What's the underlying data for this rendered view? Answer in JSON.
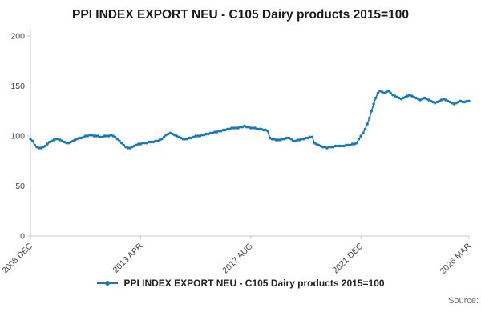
{
  "page": {
    "title": "PPI INDEX EXPORT NEU - C105 Dairy products 2015=100",
    "source_label": "Source:"
  },
  "legend": {
    "label": "PPI INDEX EXPORT NEU - C105 Dairy products 2015=100"
  },
  "chart_data": {
    "type": "line",
    "title": "PPI INDEX EXPORT NEU - C105 Dairy products 2015=100",
    "series_name": "PPI INDEX EXPORT NEU - C105 Dairy products 2015=100",
    "frequency": "monthly",
    "x_start": "2008 DEC",
    "x_end": "2026 MAR",
    "x_tick_labels": [
      "2008 DEC",
      "2013 APR",
      "2017 AUG",
      "2021 DEC",
      "2026 MAR"
    ],
    "x_tick_indices": [
      0,
      52,
      104,
      156,
      207
    ],
    "y_ticks": [
      0,
      50,
      100,
      150,
      200
    ],
    "ylim": [
      0,
      200
    ],
    "grid": false,
    "legend_position": "bottom",
    "line_color": "#1878b8",
    "axis_color": "#c8c8c8",
    "tick_label_color": "#444444",
    "values": [
      97,
      95,
      91,
      89,
      88,
      88,
      89,
      90,
      92,
      94,
      95,
      96,
      97,
      97,
      96,
      95,
      94,
      93,
      93,
      94,
      95,
      96,
      97,
      98,
      98,
      99,
      100,
      100,
      101,
      101,
      100,
      100,
      100,
      99,
      99,
      100,
      100,
      100,
      101,
      100,
      99,
      97,
      95,
      93,
      91,
      89,
      88,
      88,
      89,
      90,
      91,
      92,
      92,
      93,
      93,
      93,
      94,
      94,
      94,
      95,
      95,
      96,
      97,
      99,
      101,
      102,
      103,
      102,
      101,
      100,
      99,
      98,
      97,
      97,
      97,
      98,
      98,
      99,
      100,
      100,
      100,
      101,
      101,
      102,
      102,
      103,
      103,
      104,
      104,
      105,
      105,
      106,
      106,
      107,
      107,
      108,
      108,
      108,
      108,
      109,
      109,
      110,
      109,
      109,
      108,
      108,
      108,
      107,
      107,
      107,
      106,
      106,
      105,
      98,
      97,
      97,
      96,
      96,
      96,
      97,
      97,
      98,
      98,
      97,
      95,
      95,
      96,
      96,
      97,
      97,
      98,
      98,
      99,
      99,
      93,
      92,
      91,
      90,
      89,
      89,
      88,
      89,
      89,
      89,
      90,
      90,
      90,
      90,
      90,
      91,
      91,
      91,
      92,
      92,
      93,
      97,
      100,
      103,
      107,
      112,
      118,
      125,
      132,
      138,
      143,
      145,
      144,
      143,
      144,
      145,
      143,
      141,
      140,
      139,
      138,
      137,
      138,
      139,
      140,
      141,
      140,
      139,
      138,
      137,
      136,
      137,
      138,
      137,
      136,
      135,
      134,
      133,
      134,
      135,
      136,
      137,
      136,
      135,
      134,
      133,
      132,
      133,
      134,
      135,
      134,
      134,
      135,
      135
    ]
  }
}
